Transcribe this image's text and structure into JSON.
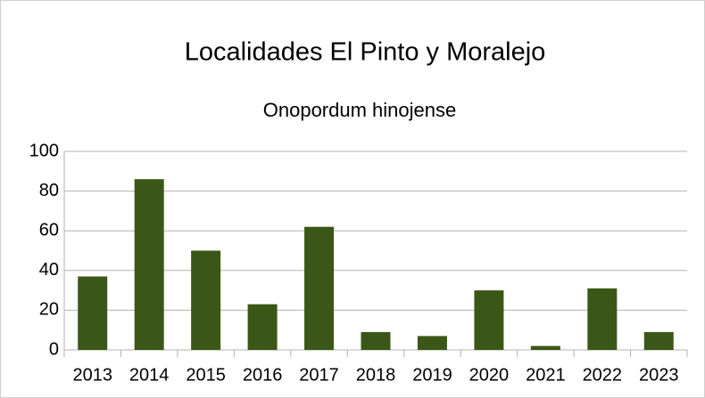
{
  "chart_data": {
    "type": "bar",
    "title": "Localidades El Pinto y Moralejo",
    "subtitle": "Onopordum hinojense",
    "categories": [
      "2013",
      "2014",
      "2015",
      "2016",
      "2017",
      "2018",
      "2019",
      "2020",
      "2021",
      "2022",
      "2023"
    ],
    "values": [
      37,
      86,
      50,
      23,
      62,
      9,
      7,
      30,
      2,
      31,
      9
    ],
    "color": "#3b5717",
    "ylim": [
      0,
      100
    ],
    "yticks": [
      0,
      20,
      40,
      60,
      80,
      100
    ],
    "grid": true
  }
}
